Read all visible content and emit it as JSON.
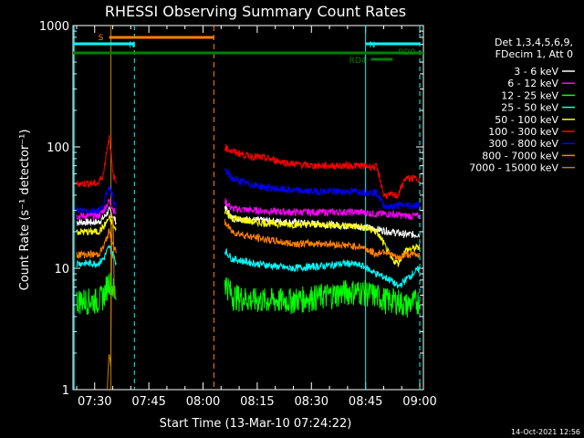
{
  "chart_data": {
    "type": "line",
    "title": "RHESSI Observing Summary Count Rates",
    "xlabel": "Start Time (13-Mar-10 07:24:22)",
    "ylabel": "Count Rate (s⁻¹ detector⁻¹)",
    "yscale": "log",
    "ylim": [
      1,
      1000
    ],
    "xlim_minutes_after_0724": [
      0,
      97
    ],
    "x_ticks": [
      {
        "label": "07:30",
        "minute": 6
      },
      {
        "label": "07:45",
        "minute": 21
      },
      {
        "label": "08:00",
        "minute": 36
      },
      {
        "label": "08:15",
        "minute": 51
      },
      {
        "label": "08:30",
        "minute": 66
      },
      {
        "label": "08:45",
        "minute": 81
      },
      {
        "label": "09:00",
        "minute": 96
      }
    ],
    "y_ticks": [
      {
        "label": "1",
        "value": 1
      },
      {
        "label": "10",
        "value": 10
      },
      {
        "label": "100",
        "value": 100
      },
      {
        "label": "1000",
        "value": 1000
      }
    ],
    "legend_header": [
      "Det 1,3,4,5,6,9,",
      "FDecim 1, Att 0"
    ],
    "series": [
      {
        "name": "3 - 6 keV",
        "color": "#ffffff",
        "seg1": [
          [
            1,
            24
          ],
          [
            7,
            24
          ],
          [
            8.5,
            26
          ],
          [
            10,
            30
          ],
          [
            12,
            24
          ]
        ],
        "seg2": [
          [
            42,
            32
          ],
          [
            44,
            26
          ],
          [
            50,
            25
          ],
          [
            60,
            24
          ],
          [
            70,
            23
          ],
          [
            80,
            22
          ],
          [
            84,
            21
          ],
          [
            88,
            20
          ],
          [
            92,
            19
          ],
          [
            96,
            19
          ]
        ]
      },
      {
        "name": "6 - 12 keV",
        "color": "#ff00ff",
        "seg1": [
          [
            1,
            27
          ],
          [
            7,
            27
          ],
          [
            8.5,
            30
          ],
          [
            10,
            36
          ],
          [
            12,
            27
          ]
        ],
        "seg2": [
          [
            42,
            36
          ],
          [
            44,
            31
          ],
          [
            50,
            30
          ],
          [
            60,
            29
          ],
          [
            70,
            29
          ],
          [
            80,
            29
          ],
          [
            84,
            28
          ],
          [
            88,
            28
          ],
          [
            92,
            27
          ],
          [
            96,
            27
          ]
        ]
      },
      {
        "name": "12 - 25 keV",
        "color": "#00ff00",
        "seg1": [
          [
            1,
            5.5
          ],
          [
            7,
            5.5
          ],
          [
            8.5,
            6
          ],
          [
            10,
            8
          ],
          [
            12,
            6
          ]
        ],
        "seg2": [
          [
            42,
            8
          ],
          [
            44,
            6
          ],
          [
            50,
            5.5
          ],
          [
            60,
            5.5
          ],
          [
            70,
            6
          ],
          [
            76,
            6.5
          ],
          [
            80,
            6.5
          ],
          [
            84,
            6
          ],
          [
            87,
            5.5
          ],
          [
            90,
            5.5
          ],
          [
            92,
            5
          ],
          [
            96,
            5.5
          ]
        ]
      },
      {
        "name": "25 - 50 keV",
        "color": "#00ffff",
        "seg1": [
          [
            1,
            11
          ],
          [
            7,
            11
          ],
          [
            8.5,
            12
          ],
          [
            10,
            15
          ],
          [
            12,
            11
          ]
        ],
        "seg2": [
          [
            42,
            14
          ],
          [
            44,
            12
          ],
          [
            50,
            11
          ],
          [
            60,
            10
          ],
          [
            70,
            10.5
          ],
          [
            76,
            11
          ],
          [
            80,
            10.5
          ],
          [
            84,
            9
          ],
          [
            88,
            8
          ],
          [
            90,
            7
          ],
          [
            92,
            8
          ],
          [
            96,
            10
          ]
        ]
      },
      {
        "name": "50 - 100 keV",
        "color": "#ffff00",
        "seg1": [
          [
            1,
            20
          ],
          [
            7,
            20
          ],
          [
            8.5,
            22
          ],
          [
            10,
            26
          ],
          [
            12,
            20
          ]
        ],
        "seg2": [
          [
            42,
            30
          ],
          [
            44,
            26
          ],
          [
            50,
            24
          ],
          [
            60,
            23
          ],
          [
            70,
            23
          ],
          [
            80,
            22
          ],
          [
            84,
            20
          ],
          [
            86,
            16
          ],
          [
            88,
            12
          ],
          [
            90,
            11
          ],
          [
            92,
            14
          ],
          [
            96,
            15
          ]
        ]
      },
      {
        "name": "100 - 300 keV",
        "color": "#ff0000",
        "seg1": [
          [
            1,
            50
          ],
          [
            7,
            50
          ],
          [
            8.5,
            60
          ],
          [
            10,
            120
          ],
          [
            11,
            60
          ],
          [
            12,
            50
          ]
        ],
        "seg2": [
          [
            42,
            100
          ],
          [
            44,
            92
          ],
          [
            48,
            85
          ],
          [
            54,
            80
          ],
          [
            60,
            73
          ],
          [
            66,
            70
          ],
          [
            72,
            70
          ],
          [
            80,
            70
          ],
          [
            84,
            68
          ],
          [
            86,
            40
          ],
          [
            88,
            40
          ],
          [
            90,
            40
          ],
          [
            92,
            55
          ],
          [
            96,
            55
          ]
        ]
      },
      {
        "name": "300 - 800 keV",
        "color": "#0000ff",
        "seg1": [
          [
            1,
            30
          ],
          [
            7,
            30
          ],
          [
            8.5,
            33
          ],
          [
            10,
            48
          ],
          [
            12,
            30
          ]
        ],
        "seg2": [
          [
            42,
            65
          ],
          [
            44,
            55
          ],
          [
            48,
            50
          ],
          [
            54,
            46
          ],
          [
            60,
            44
          ],
          [
            66,
            43
          ],
          [
            72,
            43
          ],
          [
            80,
            43
          ],
          [
            84,
            42
          ],
          [
            86,
            33
          ],
          [
            88,
            32
          ],
          [
            90,
            33
          ],
          [
            92,
            33
          ],
          [
            96,
            33
          ]
        ]
      },
      {
        "name": "800 - 7000 keV",
        "color": "#ff8000",
        "seg1": [
          [
            1,
            13
          ],
          [
            7,
            13
          ],
          [
            8.5,
            15
          ],
          [
            10,
            20
          ],
          [
            12,
            13
          ]
        ],
        "seg2": [
          [
            42,
            24
          ],
          [
            44,
            20
          ],
          [
            50,
            18
          ],
          [
            60,
            16
          ],
          [
            70,
            16
          ],
          [
            80,
            15
          ],
          [
            84,
            13
          ],
          [
            86,
            14
          ],
          [
            88,
            13
          ],
          [
            90,
            12
          ],
          [
            92,
            13
          ],
          [
            96,
            13
          ]
        ]
      },
      {
        "name": "7000 - 15000 keV",
        "color": "#c08000",
        "seg1": [
          [
            9.5,
            1
          ],
          [
            10,
            2
          ],
          [
            10.5,
            1.5
          ],
          [
            11,
            30
          ],
          [
            11.5,
            1
          ]
        ],
        "seg2": []
      }
    ],
    "annotations": [
      {
        "label": "S",
        "color": "#ff8000",
        "range": [
          10,
          39
        ]
      },
      {
        "label": "N",
        "color": "#00ffff",
        "range": [
          0,
          17
        ]
      },
      {
        "label": "N",
        "color": "#00ffff",
        "range": [
          81,
          96
        ]
      },
      {
        "label": "RD0",
        "color": "#008000",
        "range": [
          0,
          97
        ]
      },
      {
        "label": "RD4",
        "color": "#008000",
        "range": [
          82.5,
          88.5
        ]
      }
    ],
    "footer_date": "14-Oct-2021 12:56"
  }
}
